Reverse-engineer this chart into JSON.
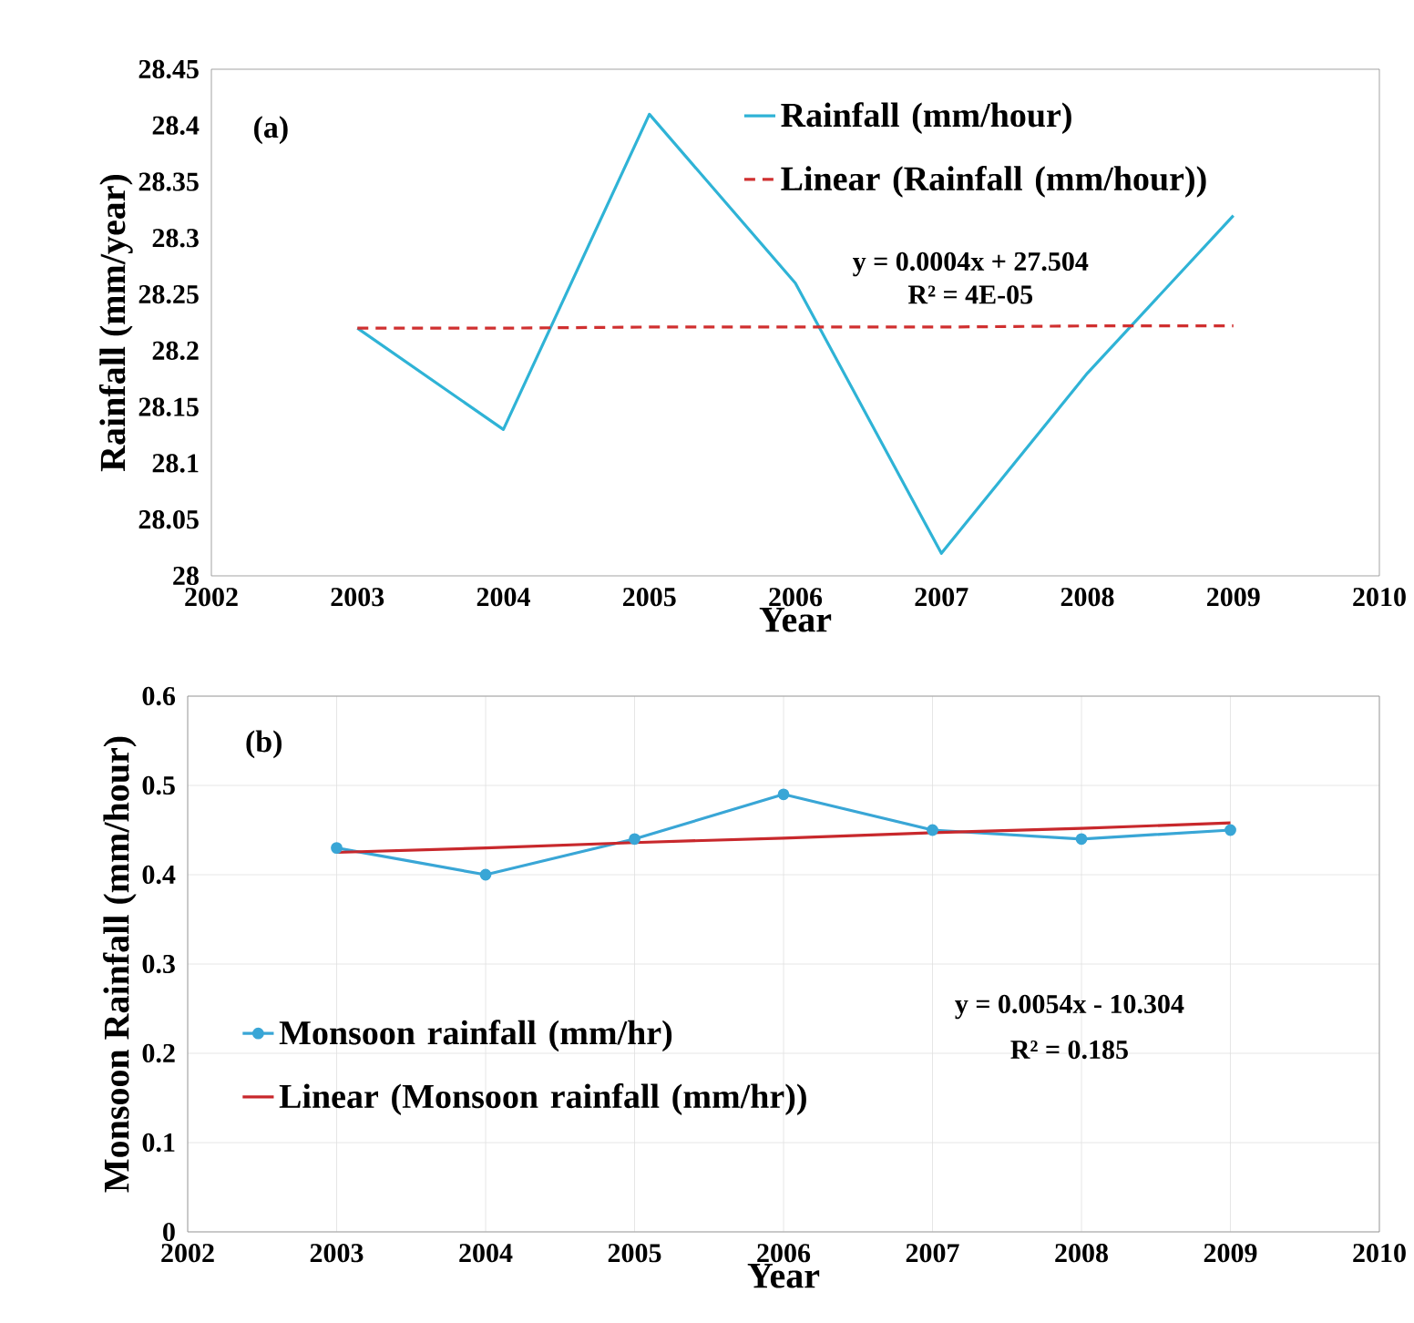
{
  "chart_data": [
    {
      "type": "line",
      "xlabel": "Year",
      "ylabel": "Rainfall (mm/year)",
      "x": [
        2003,
        2004,
        2005,
        2006,
        2007,
        2008,
        2009
      ],
      "xlim": [
        2002,
        2010
      ],
      "xticks": [
        2002,
        2003,
        2004,
        2005,
        2006,
        2007,
        2008,
        2009,
        2010
      ],
      "ylim": [
        28,
        28.45
      ],
      "yticks": [
        28,
        28.05,
        28.1,
        28.15,
        28.2,
        28.25,
        28.3,
        28.35,
        28.4,
        28.45
      ],
      "grid": false,
      "legend": "top right",
      "annotations": [
        "(a)",
        "y = 0.0004x + 27.504",
        "R² = 4E-05"
      ],
      "series": [
        {
          "name": "Rainfall (mm/hour)",
          "color": "#2fb3d6",
          "marker": "none",
          "line_style": "solid",
          "values": [
            28.22,
            28.13,
            28.41,
            28.26,
            28.02,
            28.18,
            28.32
          ]
        },
        {
          "name": "Linear (Rainfall (mm/hour))",
          "color": "#d03030",
          "marker": "none",
          "line_style": "dashed",
          "values": [
            28.22,
            28.22,
            28.221,
            28.221,
            28.221,
            28.222,
            28.222
          ]
        }
      ]
    },
    {
      "type": "line",
      "xlabel": "Year",
      "ylabel": "Monsoon Rainfall (mm/hour)",
      "x": [
        2003,
        2004,
        2005,
        2006,
        2007,
        2008,
        2009
      ],
      "xlim": [
        2002,
        2010
      ],
      "xticks": [
        2002,
        2003,
        2004,
        2005,
        2006,
        2007,
        2008,
        2009,
        2010
      ],
      "ylim": [
        0,
        0.6
      ],
      "yticks": [
        0,
        0.1,
        0.2,
        0.3,
        0.4,
        0.5,
        0.6
      ],
      "grid": true,
      "legend": "left",
      "annotations": [
        "(b)",
        "y = 0.0054x - 10.304",
        "R² = 0.185"
      ],
      "series": [
        {
          "name": "Monsoon rainfall (mm/hr)",
          "color": "#39a6d6",
          "marker": "circle",
          "line_style": "solid",
          "values": [
            0.43,
            0.4,
            0.44,
            0.49,
            0.45,
            0.44,
            0.45
          ]
        },
        {
          "name": "Linear (Monsoon rainfall (mm/hr))",
          "color": "#c8282c",
          "marker": "none",
          "line_style": "solid",
          "values": [
            0.425,
            0.43,
            0.436,
            0.441,
            0.447,
            0.452,
            0.458
          ]
        }
      ]
    }
  ]
}
